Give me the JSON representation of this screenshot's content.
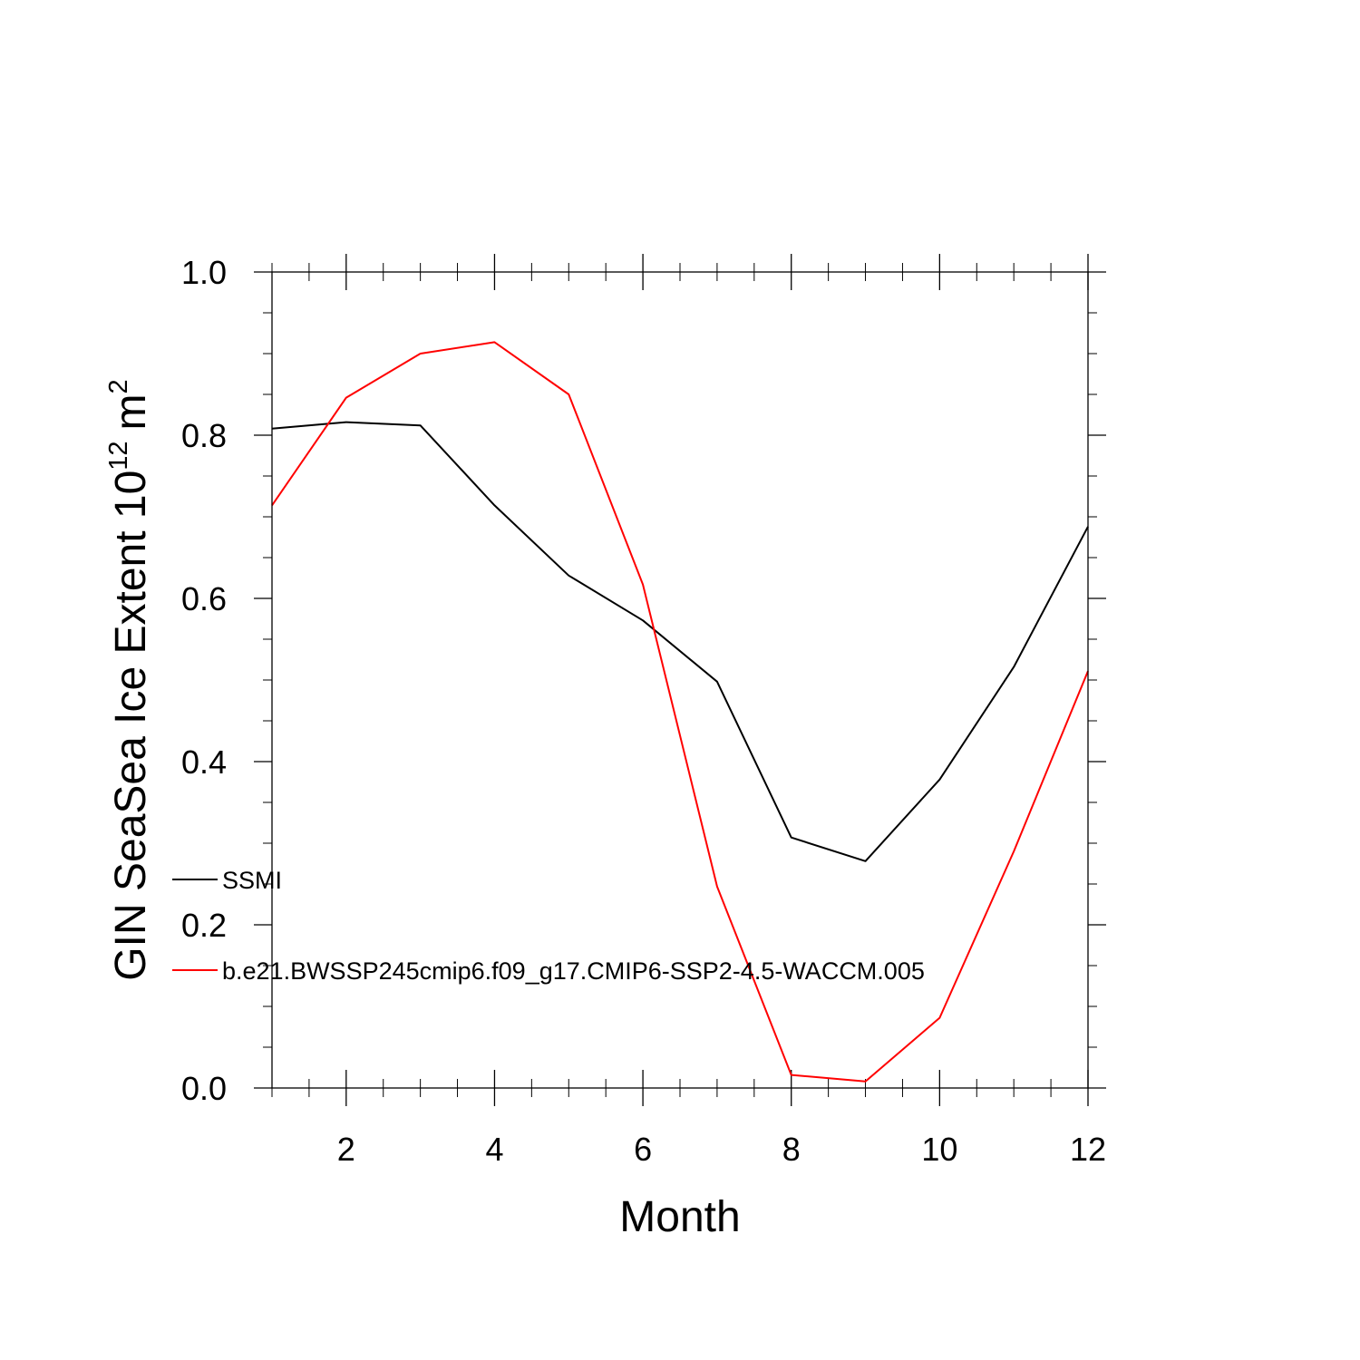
{
  "chart_data": {
    "type": "line",
    "title": "",
    "xlabel": "Month",
    "ylabel_main": "GIN SeaSea Ice Extent 10",
    "ylabel_exp": "12",
    "ylabel_unit": "m",
    "ylabel_unit_exp": "2",
    "xlim": [
      1,
      12
    ],
    "ylim": [
      0.0,
      1.0
    ],
    "x_ticks": [
      2,
      4,
      6,
      8,
      10,
      12
    ],
    "x_tick_labels": [
      "2",
      "4",
      "6",
      "8",
      "10",
      "12"
    ],
    "y_ticks": [
      0.0,
      0.2,
      0.4,
      0.6,
      0.8,
      1.0
    ],
    "y_tick_labels": [
      "0.0",
      "0.2",
      "0.4",
      "0.6",
      "0.8",
      "1.0"
    ],
    "x": [
      1,
      2,
      3,
      4,
      5,
      6,
      7,
      8,
      9,
      10,
      11,
      12
    ],
    "series": [
      {
        "name": "SSMI",
        "color": "#000000",
        "values": [
          0.808,
          0.816,
          0.812,
          0.714,
          0.628,
          0.573,
          0.498,
          0.307,
          0.278,
          0.378,
          0.516,
          0.688
        ]
      },
      {
        "name": "b.e21.BWSSP245cmip6.f09_g17.CMIP6-SSP2-4.5-WACCM.005",
        "color": "#ff0000",
        "values": [
          0.714,
          0.846,
          0.9,
          0.914,
          0.85,
          0.617,
          0.247,
          0.016,
          0.008,
          0.086,
          0.29,
          0.511
        ]
      }
    ],
    "legend_position": "lower-left"
  }
}
